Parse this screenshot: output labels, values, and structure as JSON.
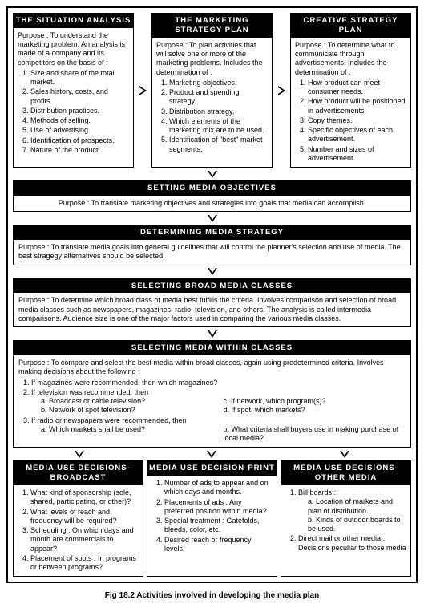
{
  "caption": "Fig 18.2  Activities involved in developing the media plan",
  "top": {
    "situation": {
      "title": "THE SITUATION ANALYSIS",
      "purpose": "Purpose : To understand the marketing problem. An analysis is made of a company and its competitors on the basis of :",
      "i1": "Size and share of the total market.",
      "i2": "Sales history, costs, and profits.",
      "i3": "Distribution practices.",
      "i4": "Methods of selling.",
      "i5": "Use of advertising.",
      "i6": "Identification of prospects.",
      "i7": "Nature of the product."
    },
    "marketing": {
      "title": "THE MARKETING STRATEGY PLAN",
      "purpose": "Purpose : To plan activities that will solve one or more of the marketing problems. Includes the determination of :",
      "i1": "Marketing objectives.",
      "i2": "Product and spending strategy.",
      "i3": "Distribution strategy.",
      "i4": "Which elements of the marketing mix are to be used.",
      "i5": "Identification of \"best\" market segments."
    },
    "creative": {
      "title": "CREATIVE STRATEGY PLAN",
      "purpose": "Purpose : To determine what to communicate through advertisements. Includes the determination of :",
      "i1": "How product can meet consumer needs.",
      "i2": "How product will be positioned in advertisements.",
      "i3": "Copy themes.",
      "i4": "Specific objectives of each advertisement.",
      "i5": "Number and sizes of advertisement."
    }
  },
  "objectives": {
    "title": "SETTING MEDIA OBJECTIVES",
    "purpose": "Purpose : To translate marketing objectives and strategies into goals that media can accomplish."
  },
  "strategy": {
    "title": "DETERMINING MEDIA STRATEGY",
    "purpose": "Purpose : To translate media goals into general guidelines that will control the planner's selection and use of media. The best stragegy alternatives should be selected."
  },
  "broad": {
    "title": "SELECTING BROAD MEDIA CLASSES",
    "purpose": "Purpose : To determine which broad class of media best fulfills the criteria. Involves comparison and selection of broad media classes such as newspapers, magazines, radio, television, and others. The analysis is called intermedia comparisons. Audience size is one of the major factors used in comparing the various media classes."
  },
  "within": {
    "title": "SELECTING MEDIA WITHIN CLASSES",
    "purpose": "Purpose : To compare and select the best media within broad classes, again using predetermined criteria. Involves making decisions about the following :",
    "i1": "If magazines were recommended, then which magazines?",
    "i2": "If television was recommended, then",
    "i2a": "a. Broadcast or cable television?",
    "i2b": "b. Network of spot television?",
    "i2c": "c. If network, which program(s)?",
    "i2d": "d. If spot, which markets?",
    "i3": "If radio or newspapers were recommended, then",
    "i3a": "a. Which markets shall be used?",
    "i3b": "b. What criteria shall buyers use in making purchase of local media?"
  },
  "bottom": {
    "broadcast": {
      "title": "MEDIA USE DECISIONS-BROADCAST",
      "i1": "What kind of sponsorship (sole, shared, participating, or other)?",
      "i2": "What levels of reach and frequency will be required?",
      "i3": "Scheduling : On which days and month are commercials to appear?",
      "i4": "Placement of spots : In programs or between programs?"
    },
    "print": {
      "title": "MEDIA USE DECISION-PRINT",
      "i1": "Number of ads to appear and on which days and months.",
      "i2": "Placements of ads : Any preferred position within media?",
      "i3": "Special treatment : Gatefolds, bleeds, color, etc.",
      "i4": "Desired reach or frequency levels."
    },
    "other": {
      "title": "MEDIA USE DECISIONS-OTHER MEDIA",
      "i1": "Bill boards :",
      "i1a": "a. Location of markets and plan of distribution.",
      "i1b": "b. Kinds of outdoor boards to be used.",
      "i2": "Direct mail or other media : Decisions peculiar to those media"
    }
  }
}
